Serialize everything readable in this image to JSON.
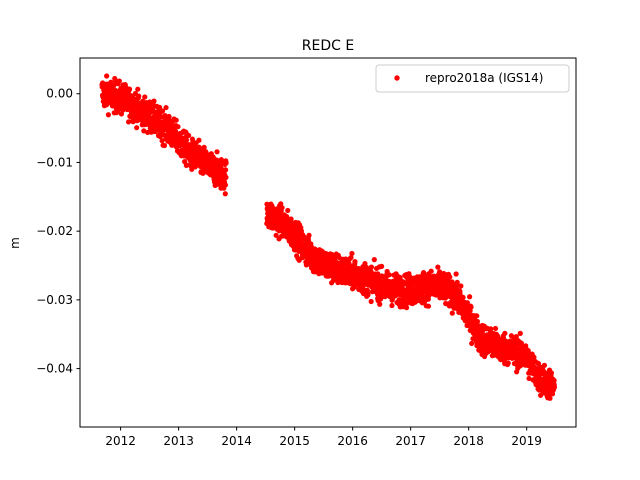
{
  "chart_data": {
    "type": "scatter",
    "title": "REDC E",
    "xlabel": "",
    "ylabel": "m",
    "xlim": [
      2011.3,
      2019.85
    ],
    "ylim": [
      -0.0485,
      0.0052
    ],
    "xticks": [
      2012,
      2013,
      2014,
      2015,
      2016,
      2017,
      2018,
      2019
    ],
    "xtick_labels": [
      "2012",
      "2013",
      "2014",
      "2015",
      "2016",
      "2017",
      "2018",
      "2019"
    ],
    "yticks": [
      0.0,
      -0.01,
      -0.02,
      -0.03,
      -0.04
    ],
    "ytick_labels": [
      "0.00",
      "−0.01",
      "−0.02",
      "−0.03",
      "−0.04"
    ],
    "grid": false,
    "legend_position": "top-right",
    "series": [
      {
        "name": "repro2018a (IGS14)",
        "color": "#ff0000",
        "marker": "circle",
        "segments": [
          {
            "x_start": 2011.68,
            "x_end": 2013.82,
            "trend": [
              [
                2011.68,
                0.0002
              ],
              [
                2011.95,
                -0.0005
              ],
              [
                2012.2,
                -0.0015
              ],
              [
                2012.4,
                -0.0028
              ],
              [
                2012.6,
                -0.004
              ],
              [
                2012.8,
                -0.005
              ],
              [
                2013.0,
                -0.0068
              ],
              [
                2013.2,
                -0.0088
              ],
              [
                2013.4,
                -0.0098
              ],
              [
                2013.6,
                -0.011
              ],
              [
                2013.82,
                -0.012
              ]
            ],
            "noise": 0.0015
          },
          {
            "x_start": 2014.52,
            "x_end": 2019.48,
            "trend": [
              [
                2014.52,
                -0.0175
              ],
              [
                2014.8,
                -0.0188
              ],
              [
                2015.0,
                -0.0205
              ],
              [
                2015.2,
                -0.0228
              ],
              [
                2015.5,
                -0.0248
              ],
              [
                2015.8,
                -0.0258
              ],
              [
                2016.0,
                -0.0262
              ],
              [
                2016.3,
                -0.0272
              ],
              [
                2016.6,
                -0.0282
              ],
              [
                2016.9,
                -0.0287
              ],
              [
                2017.2,
                -0.0282
              ],
              [
                2017.5,
                -0.028
              ],
              [
                2017.8,
                -0.0295
              ],
              [
                2018.0,
                -0.0325
              ],
              [
                2018.2,
                -0.0355
              ],
              [
                2018.5,
                -0.0368
              ],
              [
                2018.8,
                -0.0375
              ],
              [
                2019.0,
                -0.0385
              ],
              [
                2019.2,
                -0.0412
              ],
              [
                2019.48,
                -0.0428
              ]
            ],
            "noise": 0.0015
          }
        ]
      }
    ]
  }
}
